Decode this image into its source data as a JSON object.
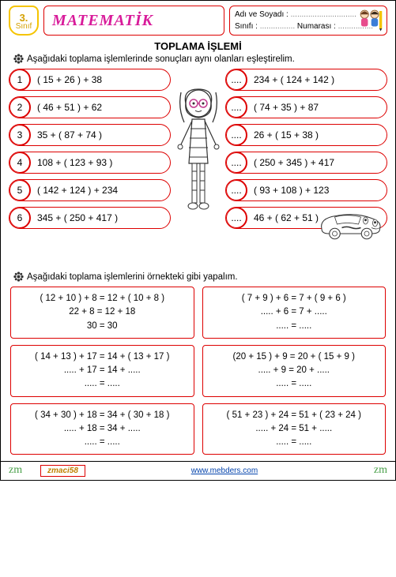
{
  "header": {
    "grade_num": "3.",
    "grade_word": "Sınıf",
    "subject": "MATEMATİK",
    "name_label": "Adı ve Soyadı :",
    "class_label": "Sınıfı :",
    "number_label": "Numarası :",
    "dots": "..............................",
    "dots_short": "................"
  },
  "section1": {
    "title": "TOPLAMA  İŞLEMİ",
    "instruction": "Aşağıdaki toplama işlemlerinde  sonuçları  aynı olanları eşleştirelim.",
    "left": [
      {
        "n": "1",
        "t": "( 15 + 26 ) + 38"
      },
      {
        "n": "2",
        "t": "( 46 + 51 ) + 62"
      },
      {
        "n": "3",
        "t": "35 + ( 87 + 74 )"
      },
      {
        "n": "4",
        "t": "108 + ( 123 + 93 )"
      },
      {
        "n": "5",
        "t": "( 142 + 124 ) + 234"
      },
      {
        "n": "6",
        "t": "345 + ( 250 + 417 )"
      }
    ],
    "right": [
      {
        "n": "....",
        "t": "234 + ( 124 + 142 )"
      },
      {
        "n": "....",
        "t": "( 74 + 35 ) + 87"
      },
      {
        "n": "....",
        "t": "26 + ( 15  + 38 )"
      },
      {
        "n": "....",
        "t": "( 250 + 345 ) + 417"
      },
      {
        "n": "....",
        "t": "( 93 + 108 ) + 123"
      },
      {
        "n": "....",
        "t": "46 + ( 62  + 51 )"
      }
    ]
  },
  "section2": {
    "instruction": "Aşağıdaki toplama işlemlerini örnekteki gibi yapalım.",
    "boxes": [
      [
        "( 12 + 10 ) + 8 =  12 + ( 10 + 8 )",
        "22 + 8 = 12 + 18",
        "30 = 30"
      ],
      [
        "( 7 + 9 ) + 6 =  7 + ( 9 + 6 )",
        "..... + 6 = 7 + .....",
        "..... = ....."
      ],
      [
        "( 14 + 13 ) + 17 =  14 + ( 13 + 17 )",
        "..... + 17 = 14 + .....",
        "..... = ....."
      ],
      [
        "(20 + 15 ) + 9 =  20 + ( 15 + 9 )",
        "..... + 9 = 20 + .....",
        "..... = ....."
      ],
      [
        "( 34 + 30 ) + 18 =  34 + ( 30 + 18 )",
        "..... + 18 = 34 + .....",
        "..... = ....."
      ],
      [
        "( 51 + 23 ) + 24 =  51 + ( 23 + 24 )",
        "..... + 24 = 51 + .....",
        "..... = ....."
      ]
    ]
  },
  "footer": {
    "sig": "zm",
    "tag": "zmaci58",
    "url": "www.mebders.com"
  },
  "colors": {
    "red": "#d00",
    "pink": "#d81b9a",
    "gold": "#f5c400"
  }
}
